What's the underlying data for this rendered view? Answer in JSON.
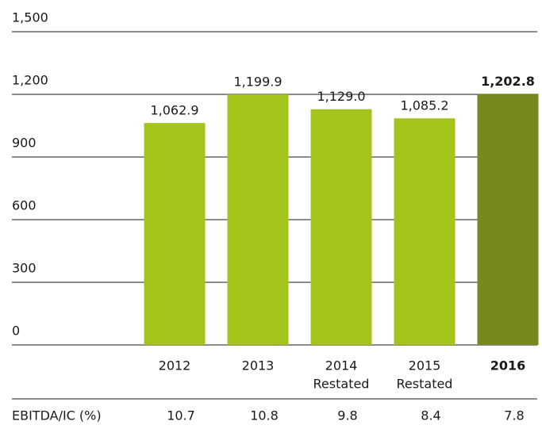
{
  "chart_data": {
    "type": "bar",
    "categories": [
      "2012",
      "2013",
      "2014",
      "2015",
      "2016"
    ],
    "category_notes": [
      null,
      null,
      "Restated",
      "Restated",
      null
    ],
    "values": [
      1062.9,
      1199.9,
      1129.0,
      1085.2,
      1202.8
    ],
    "value_labels": [
      "1,062.9",
      "1,199.9",
      "1,129.0",
      "1,085.2",
      "1,202.8"
    ],
    "colors": [
      "#a3c41a",
      "#a3c41a",
      "#a3c41a",
      "#a3c41a",
      "#76891e"
    ],
    "highlight": 4,
    "ylim": [
      0,
      1500
    ],
    "yticks": [
      0,
      300,
      600,
      900,
      {
        "value": 1200,
        "label": "1,200"
      },
      {
        "value": 1500,
        "label": "1,500"
      }
    ],
    "grid": true,
    "table_row": {
      "label": "EBITDA/IC (%)",
      "values": [
        10.7,
        10.8,
        9.8,
        8.4,
        7.8
      ]
    }
  }
}
